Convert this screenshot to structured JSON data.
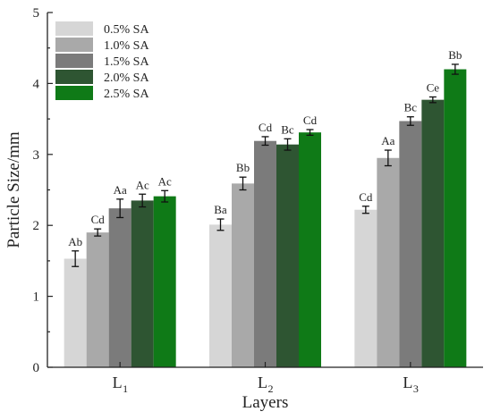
{
  "chart_data": {
    "type": "bar",
    "title": "",
    "xlabel": "Layers",
    "ylabel": "Particle Size/mm",
    "ylim": [
      0,
      5
    ],
    "yticks": [
      0,
      1,
      2,
      3,
      4,
      5
    ],
    "grid": false,
    "legend_position": "top-left",
    "categories": [
      {
        "main": "L",
        "sub": "1"
      },
      {
        "main": "L",
        "sub": "2"
      },
      {
        "main": "L",
        "sub": "3"
      }
    ],
    "series": [
      {
        "name": "0.5% SA",
        "color": "#d6d6d6",
        "values": [
          1.53,
          2.01,
          2.22
        ],
        "errors": [
          0.11,
          0.08,
          0.05
        ],
        "labels": [
          "Ab",
          "Ba",
          "Cd"
        ]
      },
      {
        "name": "1.0% SA",
        "color": "#a9a9a9",
        "values": [
          1.9,
          2.59,
          2.95
        ],
        "errors": [
          0.05,
          0.09,
          0.11
        ],
        "labels": [
          "Cd",
          "Bb",
          "Aa"
        ]
      },
      {
        "name": "1.5% SA",
        "color": "#7b7b7b",
        "values": [
          2.24,
          3.19,
          3.47
        ],
        "errors": [
          0.13,
          0.06,
          0.06
        ],
        "labels": [
          "Aa",
          "Cd",
          "Bc"
        ]
      },
      {
        "name": "2.0% SA",
        "color": "#2e5532",
        "values": [
          2.35,
          3.14,
          3.77
        ],
        "errors": [
          0.09,
          0.08,
          0.04
        ],
        "labels": [
          "Ac",
          "Bc",
          "Ce"
        ]
      },
      {
        "name": "2.5% SA",
        "color": "#0f7a17",
        "values": [
          2.41,
          3.31,
          4.2
        ],
        "errors": [
          0.08,
          0.04,
          0.07
        ],
        "labels": [
          "Ac",
          "Cd",
          "Bb"
        ]
      }
    ]
  }
}
